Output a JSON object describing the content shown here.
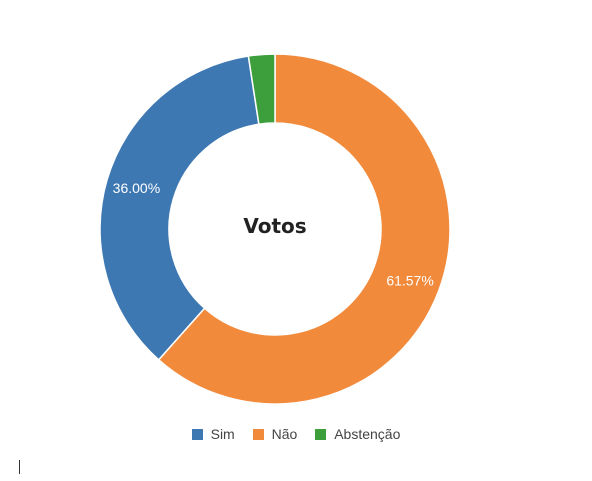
{
  "chart_data": {
    "type": "pie",
    "title": "Votos",
    "series": [
      {
        "name": "Sim",
        "value": 36.0,
        "label": "36.00%",
        "color": "#3e78b2"
      },
      {
        "name": "Não",
        "value": 61.57,
        "label": "61.57%",
        "color": "#f28a3c"
      },
      {
        "name": "Abstenção",
        "value": 2.43,
        "label": "",
        "color": "#3c9f3c"
      }
    ],
    "legend_position": "bottom"
  },
  "legend": {
    "items": [
      {
        "label": "Sim",
        "color": "#3e78b2"
      },
      {
        "label": "Não",
        "color": "#f28a3c"
      },
      {
        "label": "Abstenção",
        "color": "#3c9f3c"
      }
    ]
  }
}
